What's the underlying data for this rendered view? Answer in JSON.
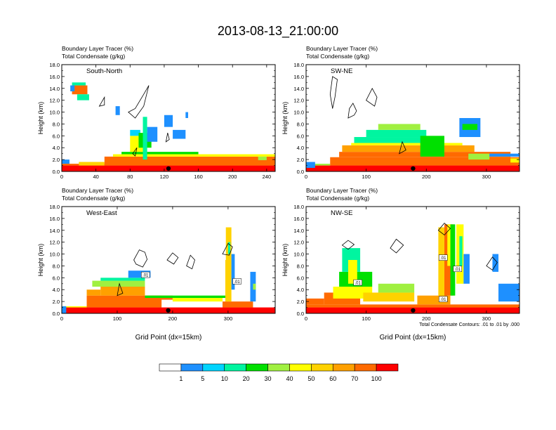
{
  "figure": {
    "title": "2013-08-13_21:00:00",
    "footnote": "Total Condensate Contours: .01 to .01 by .000"
  },
  "chart_data": [
    {
      "type": "heatmap",
      "panel_label": "South-North",
      "header_lines": [
        "Boundary Layer Tracer   (%)",
        "Total Condensate   (g/kg)"
      ],
      "ylabel": "Height (km)",
      "xlabel": "",
      "xlim": [
        0,
        250
      ],
      "xticks": [
        0,
        40,
        80,
        120,
        160,
        200,
        240
      ],
      "ylim": [
        0,
        18
      ],
      "yticks": [
        "0.0",
        "2.0",
        "4.0",
        "6.0",
        "8.0",
        "10.0",
        "12.0",
        "14.0",
        "16.0",
        "18.0"
      ],
      "marker_x": 125,
      "cells": [
        [
          0,
          9,
          0,
          1,
          0
        ],
        [
          0,
          9,
          1,
          2,
          1
        ],
        [
          0,
          250,
          0,
          1,
          10
        ],
        [
          0,
          250,
          1,
          1.3,
          9
        ],
        [
          20,
          50,
          1,
          1.6,
          7
        ],
        [
          50,
          250,
          1,
          2.5,
          9
        ],
        [
          60,
          250,
          2.5,
          2.9,
          6
        ],
        [
          70,
          160,
          2.9,
          3.3,
          4
        ],
        [
          80,
          100,
          3.3,
          6,
          6
        ],
        [
          80,
          92,
          6,
          7,
          2
        ],
        [
          90,
          105,
          4,
          6.5,
          4
        ],
        [
          100,
          112,
          5,
          7.5,
          1
        ],
        [
          95,
          100,
          2,
          9.2,
          3
        ],
        [
          120,
          130,
          7.5,
          9.5,
          1
        ],
        [
          130,
          145,
          5.5,
          7,
          1
        ],
        [
          230,
          240,
          1.9,
          2.5,
          5
        ],
        [
          12,
          30,
          13,
          14.5,
          9
        ],
        [
          12,
          28,
          14.5,
          15,
          3
        ],
        [
          18,
          32,
          12,
          13,
          3
        ],
        [
          10,
          15,
          13.5,
          14.5,
          1
        ],
        [
          63,
          68,
          9.5,
          11,
          1
        ],
        [
          145,
          148,
          9,
          10,
          1
        ]
      ],
      "contours": [
        [
          [
            78,
            10
          ],
          [
            86,
            9
          ],
          [
            96,
            11
          ],
          [
            102,
            14.5
          ],
          [
            96,
            13
          ],
          [
            86,
            10.6
          ]
        ],
        [
          [
            44,
            11
          ],
          [
            50,
            12.5
          ],
          [
            50,
            11.2
          ]
        ],
        [
          [
            122,
            5
          ],
          [
            124,
            6.5
          ],
          [
            126,
            5.4
          ]
        ],
        [
          [
            83,
            3
          ],
          [
            88,
            4
          ],
          [
            86,
            2.6
          ]
        ]
      ]
    },
    {
      "type": "heatmap",
      "panel_label": "SW-NE",
      "header_lines": [
        "Boundary Layer Tracer   (%)",
        "Total Condensate   (g/kg)"
      ],
      "ylabel": "Height (km)",
      "xlabel": "",
      "xlim": [
        0,
        355
      ],
      "xticks": [
        0,
        100,
        200,
        300
      ],
      "ylim": [
        0,
        18
      ],
      "yticks": [
        "0.0",
        "2.0",
        "4.0",
        "6.0",
        "8.0",
        "10.0",
        "12.0",
        "14.0",
        "16.0",
        "18.0"
      ],
      "marker_x": 178,
      "cells": [
        [
          0,
          355,
          0,
          1,
          10
        ],
        [
          0,
          40,
          1,
          1.3,
          5
        ],
        [
          40,
          355,
          1,
          2.4,
          9
        ],
        [
          55,
          340,
          2.4,
          3.3,
          9
        ],
        [
          60,
          280,
          3.3,
          4.4,
          8
        ],
        [
          75,
          260,
          4.4,
          4.8,
          6
        ],
        [
          80,
          220,
          4.8,
          5.8,
          3
        ],
        [
          100,
          200,
          5.8,
          7,
          3
        ],
        [
          120,
          190,
          7,
          8,
          5
        ],
        [
          190,
          230,
          2.5,
          6,
          4
        ],
        [
          270,
          305,
          2,
          3,
          5
        ],
        [
          305,
          355,
          2.5,
          3,
          1
        ],
        [
          340,
          355,
          1.5,
          2.2,
          6
        ],
        [
          255,
          290,
          5.8,
          9,
          1
        ],
        [
          260,
          285,
          7,
          8,
          4
        ],
        [
          0,
          15,
          0.6,
          1.6,
          1
        ]
      ],
      "contours": [
        [
          [
            40,
            13
          ],
          [
            44,
            16
          ],
          [
            52,
            15.5
          ],
          [
            48,
            12.5
          ],
          [
            44,
            10.6
          ]
        ],
        [
          [
            70,
            9
          ],
          [
            80,
            9.5
          ],
          [
            84,
            10.2
          ],
          [
            78,
            11.5
          ],
          [
            72,
            10.6
          ]
        ],
        [
          [
            100,
            12
          ],
          [
            110,
            14
          ],
          [
            118,
            12.5
          ],
          [
            114,
            11
          ]
        ],
        [
          [
            155,
            3
          ],
          [
            160,
            5
          ],
          [
            166,
            3.6
          ]
        ]
      ]
    },
    {
      "type": "heatmap",
      "panel_label": "West-East",
      "header_lines": [
        "Boundary Layer Tracer   (%)",
        "Total Condensate   (g/kg)"
      ],
      "ylabel": "Height (km)",
      "xlabel": "Grid Point (dx=15km)",
      "xlim": [
        0,
        385
      ],
      "xticks": [
        0,
        100,
        200,
        300
      ],
      "ylim": [
        0,
        18
      ],
      "yticks": [
        "0.0",
        "2.0",
        "4.0",
        "6.0",
        "8.0",
        "10.0",
        "12.0",
        "14.0",
        "16.0",
        "18.0"
      ],
      "marker_x": 192,
      "contour_labels": [
        [
          151,
          6.5,
          ".01"
        ],
        [
          316,
          5.4,
          ".01"
        ]
      ],
      "cells": [
        [
          0,
          385,
          0,
          1,
          10
        ],
        [
          0,
          45,
          1,
          1.2,
          6
        ],
        [
          45,
          180,
          1,
          3,
          9
        ],
        [
          45,
          70,
          3,
          4,
          8
        ],
        [
          70,
          150,
          3,
          4.5,
          8
        ],
        [
          55,
          150,
          4.5,
          5.5,
          5
        ],
        [
          70,
          150,
          5.5,
          6,
          3
        ],
        [
          120,
          160,
          6,
          7.2,
          1
        ],
        [
          150,
          200,
          2.3,
          3,
          9
        ],
        [
          200,
          290,
          2,
          2.6,
          6
        ],
        [
          150,
          300,
          2.6,
          3,
          4
        ],
        [
          290,
          345,
          1,
          2,
          9
        ],
        [
          295,
          306,
          2,
          9,
          7
        ],
        [
          296,
          306,
          9,
          14.5,
          7
        ],
        [
          300,
          304,
          10,
          12,
          3
        ],
        [
          306,
          312,
          4,
          10,
          1
        ],
        [
          340,
          350,
          2,
          7,
          1
        ],
        [
          345,
          350,
          4,
          5,
          5
        ],
        [
          0,
          8,
          0,
          1.2,
          1
        ]
      ],
      "contours": [
        [
          [
            130,
            9
          ],
          [
            140,
            10.7
          ],
          [
            150,
            10.3
          ],
          [
            154,
            9.1
          ],
          [
            146,
            7.8
          ],
          [
            134,
            8.3
          ]
        ],
        [
          [
            190,
            9
          ],
          [
            200,
            10.2
          ],
          [
            210,
            9.4
          ],
          [
            202,
            8.3
          ]
        ],
        [
          [
            225,
            8
          ],
          [
            232,
            9.8
          ],
          [
            240,
            9
          ],
          [
            235,
            7.5
          ]
        ],
        [
          [
            290,
            10
          ],
          [
            300,
            11.8
          ],
          [
            308,
            11.2
          ],
          [
            302,
            9.8
          ]
        ],
        [
          [
            100,
            3
          ],
          [
            104,
            5
          ],
          [
            110,
            3.4
          ]
        ]
      ]
    },
    {
      "type": "heatmap",
      "panel_label": "NW-SE",
      "header_lines": [
        "Boundary Layer Tracer   (%)",
        "Total Condensate   (g/kg)"
      ],
      "ylabel": "Height (km)",
      "xlabel": "Grid Point (dx=15km)",
      "xlim": [
        0,
        355
      ],
      "xticks": [
        0,
        100,
        200,
        300
      ],
      "ylim": [
        0,
        18
      ],
      "yticks": [
        "0.0",
        "2.0",
        "4.0",
        "6.0",
        "8.0",
        "10.0",
        "12.0",
        "14.0",
        "16.0",
        "18.0"
      ],
      "marker_x": 178,
      "contour_labels": [
        [
          86,
          5.2,
          ".01"
        ],
        [
          228,
          9.4,
          ".01"
        ],
        [
          252,
          7.5,
          ".01"
        ],
        [
          228,
          2.4,
          ".01"
        ]
      ],
      "cells": [
        [
          0,
          355,
          0,
          1,
          10
        ],
        [
          0,
          355,
          1,
          1.5,
          9
        ],
        [
          0,
          30,
          1.5,
          2.5,
          9
        ],
        [
          30,
          90,
          1.5,
          3.5,
          9
        ],
        [
          45,
          110,
          2.5,
          4.5,
          6
        ],
        [
          55,
          110,
          4.5,
          7,
          4
        ],
        [
          60,
          90,
          7,
          11,
          3
        ],
        [
          70,
          85,
          5,
          9,
          6
        ],
        [
          95,
          180,
          2,
          3.5,
          7
        ],
        [
          120,
          180,
          3.5,
          5,
          5
        ],
        [
          185,
          240,
          1.5,
          3,
          8
        ],
        [
          220,
          230,
          3,
          14.5,
          7
        ],
        [
          230,
          245,
          3,
          15,
          9
        ],
        [
          235,
          243,
          8,
          15,
          6
        ],
        [
          240,
          248,
          3,
          15,
          4
        ],
        [
          250,
          262,
          5,
          15,
          6
        ],
        [
          255,
          260,
          8,
          13,
          3
        ],
        [
          262,
          272,
          5,
          10,
          1
        ],
        [
          320,
          355,
          2,
          5,
          1
        ],
        [
          310,
          320,
          7,
          10,
          1
        ]
      ],
      "contours": [
        [
          [
            60,
            11.5
          ],
          [
            70,
            12.3
          ],
          [
            80,
            11.6
          ],
          [
            70,
            10.8
          ]
        ],
        [
          [
            140,
            11
          ],
          [
            150,
            12.5
          ],
          [
            162,
            11.5
          ],
          [
            150,
            10.2
          ]
        ],
        [
          [
            220,
            14
          ],
          [
            230,
            15.2
          ],
          [
            240,
            14.3
          ],
          [
            230,
            13.2
          ]
        ],
        [
          [
            300,
            8
          ],
          [
            310,
            9.5
          ],
          [
            318,
            8.6
          ],
          [
            310,
            7.3
          ]
        ]
      ]
    }
  ],
  "colorbar": {
    "labels": [
      "1",
      "5",
      "10",
      "20",
      "30",
      "40",
      "50",
      "60",
      "70",
      "100"
    ],
    "colors": [
      "#ffffff",
      "#1e90ff",
      "#00d4ff",
      "#00f5a0",
      "#00e000",
      "#a0f040",
      "#ffff00",
      "#ffd200",
      "#ffa000",
      "#ff6a00",
      "#ff0000"
    ]
  }
}
